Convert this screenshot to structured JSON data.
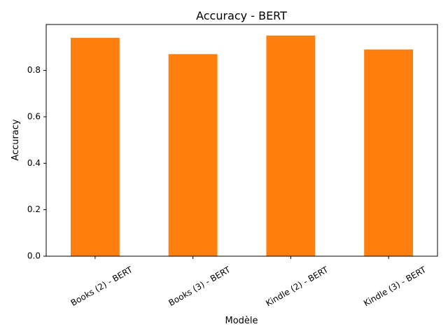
{
  "chart_data": {
    "type": "bar",
    "title": "Accuracy - BERT",
    "xlabel": "Modèle",
    "ylabel": "Accuracy",
    "categories": [
      "Books (2) - BERT",
      "Books (3) - BERT",
      "Kindle (2) - BERT",
      "Kindle (3) - BERT"
    ],
    "values": [
      0.94,
      0.87,
      0.95,
      0.89
    ],
    "ylim": [
      0,
      0.9975
    ],
    "yticks": [
      0.0,
      0.2,
      0.4,
      0.6,
      0.8
    ],
    "ytick_labels": [
      "0.0",
      "0.2",
      "0.4",
      "0.6",
      "0.8"
    ],
    "grid": false,
    "legend": "none",
    "bar_color": "#ff7f0e"
  }
}
